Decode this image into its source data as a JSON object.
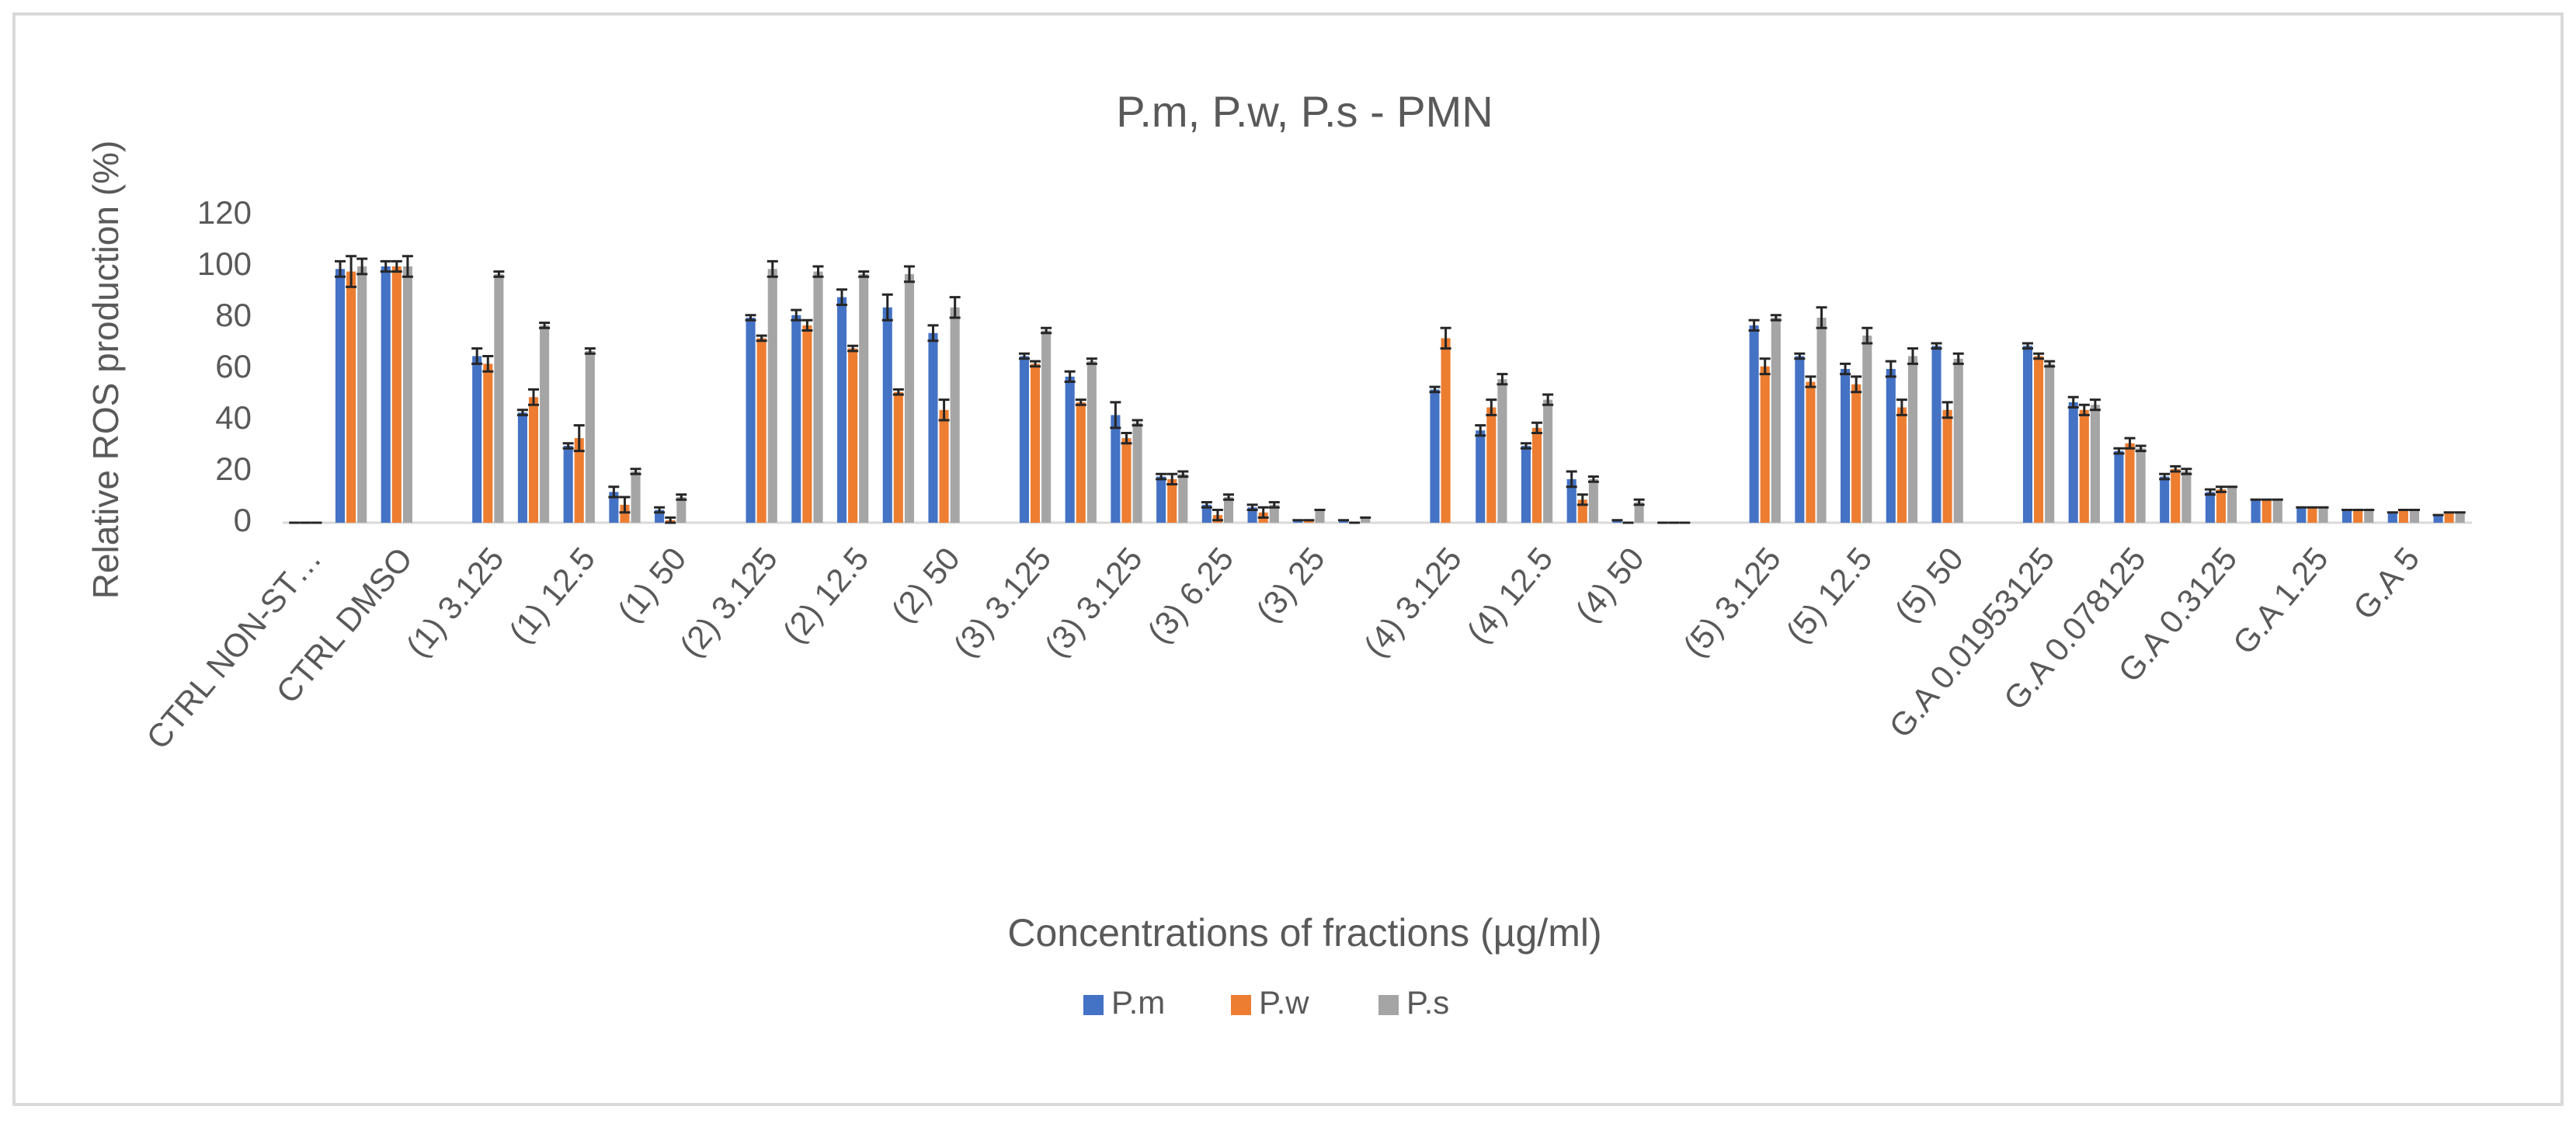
{
  "chart_data": {
    "type": "bar",
    "title": "P.m, P.w, P.s - PMN",
    "y_label": "Relative ROS production (%)",
    "x_label": "Concentrations of fractions (µg/ml)",
    "categories": [
      "CTRL NON-ST…",
      null,
      "CTRL DMSO",
      null,
      "(1) 3.125",
      null,
      "(1) 12.5",
      null,
      "(1) 50",
      null,
      "(2) 3.125",
      null,
      "(2) 12.5",
      null,
      "(2) 50",
      null,
      "(3) 3.125",
      null,
      "(3) 3.125",
      null,
      "(3) 6.25",
      null,
      "(3) 25",
      null,
      null,
      "(4) 3.125",
      null,
      "(4) 12.5",
      null,
      "(4) 50",
      null,
      null,
      "(5) 3.125",
      null,
      "(5) 12.5",
      null,
      "(5) 50",
      null,
      "G.A 0.01953125",
      null,
      "G.A 0.078125",
      null,
      "G.A 0.3125",
      null,
      "G.A 1.25",
      null,
      "G.A 5",
      null
    ],
    "series": [
      {
        "name": "P.m",
        "color": "#4472c4",
        "values": [
          0,
          99,
          100,
          null,
          65,
          43,
          30,
          12,
          5,
          null,
          80,
          81,
          88,
          84,
          74,
          null,
          65,
          57,
          42,
          18,
          7,
          6,
          1,
          1,
          null,
          52,
          36,
          30,
          17,
          1,
          0,
          null,
          77,
          65,
          60,
          60,
          69,
          null,
          69,
          47,
          28,
          18,
          12,
          9,
          6,
          5,
          4,
          3
        ],
        "errors": [
          0,
          3,
          2,
          null,
          3,
          1,
          1,
          2,
          1,
          null,
          1,
          2,
          3,
          5,
          3,
          null,
          1,
          2,
          5,
          1,
          1,
          1,
          0,
          0,
          null,
          1,
          2,
          1,
          3,
          0,
          0,
          null,
          2,
          1,
          2,
          3,
          1,
          null,
          1,
          2,
          1,
          1,
          1,
          0,
          0,
          0,
          0,
          0
        ]
      },
      {
        "name": "P.w",
        "color": "#ed7d31",
        "values": [
          0,
          98,
          100,
          null,
          62,
          49,
          33,
          7,
          1,
          null,
          72,
          77,
          68,
          51,
          44,
          null,
          62,
          47,
          33,
          17,
          3,
          4,
          1,
          0,
          null,
          72,
          45,
          37,
          9,
          0,
          0,
          null,
          61,
          55,
          54,
          45,
          44,
          null,
          65,
          44,
          31,
          21,
          13,
          9,
          6,
          5,
          5,
          4
        ],
        "errors": [
          0,
          6,
          2,
          null,
          3,
          3,
          5,
          3,
          1,
          null,
          1,
          2,
          1,
          1,
          4,
          null,
          1,
          1,
          2,
          2,
          2,
          2,
          0,
          0,
          null,
          4,
          3,
          2,
          2,
          0,
          0,
          null,
          3,
          2,
          3,
          3,
          3,
          null,
          1,
          2,
          2,
          1,
          1,
          0,
          0,
          0,
          0,
          0
        ]
      },
      {
        "name": "P.s",
        "color": "#a5a5a5",
        "values": [
          0,
          100,
          100,
          null,
          97,
          77,
          67,
          20,
          10,
          null,
          99,
          98,
          97,
          97,
          84,
          null,
          75,
          63,
          39,
          19,
          10,
          7,
          5,
          2,
          null,
          null,
          56,
          48,
          17,
          8,
          0,
          null,
          80,
          80,
          73,
          65,
          64,
          null,
          62,
          46,
          29,
          20,
          14,
          9,
          6,
          5,
          5,
          4
        ],
        "errors": [
          0,
          3,
          4,
          null,
          1,
          1,
          1,
          1,
          1,
          null,
          3,
          2,
          1,
          3,
          4,
          null,
          1,
          1,
          1,
          1,
          1,
          1,
          0,
          0,
          null,
          null,
          2,
          2,
          1,
          1,
          0,
          null,
          1,
          4,
          3,
          3,
          2,
          null,
          1,
          2,
          1,
          1,
          0,
          0,
          0,
          0,
          0,
          0
        ]
      }
    ],
    "ylim": [
      0,
      120
    ],
    "yticks": [
      0,
      20,
      40,
      60,
      80,
      100,
      120
    ],
    "grid": false,
    "legend": "bottom"
  }
}
